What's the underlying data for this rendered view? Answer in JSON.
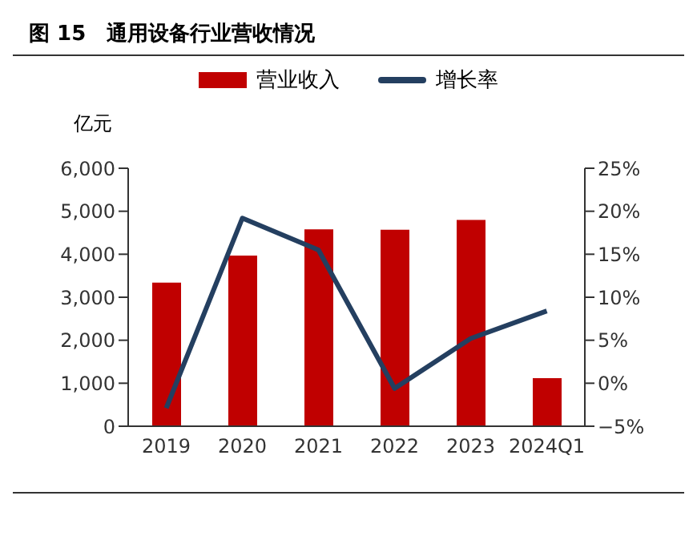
{
  "chart_data": {
    "type": "bar",
    "title": "图 15　通用设备行业营收情况",
    "ylabel": "亿元",
    "categories": [
      "2019",
      "2020",
      "2021",
      "2022",
      "2023",
      "2024Q1"
    ],
    "series": [
      {
        "name": "营业收入",
        "color": "#c00000",
        "values": [
          3340,
          3970,
          4580,
          4570,
          4800,
          1120
        ]
      },
      {
        "name": "增长率",
        "type": "line",
        "axis": "y2",
        "color": "#243f60",
        "values": [
          -2.9,
          19.2,
          15.5,
          -0.6,
          5.2,
          8.4
        ]
      }
    ],
    "ylim": [
      0,
      6000
    ],
    "yticks": [
      0,
      {
        "value": 1000,
        "label": "1,000"
      },
      {
        "value": 2000,
        "label": "2,000"
      },
      {
        "value": 3000,
        "label": "3,000"
      },
      {
        "value": 4000,
        "label": "4,000"
      },
      {
        "value": 5000,
        "label": "5,000"
      },
      {
        "value": 6000,
        "label": "6,000"
      }
    ],
    "y2lim": [
      -5,
      25
    ],
    "y2ticks": [
      {
        "value": -5,
        "label": "−5%"
      },
      {
        "value": 0,
        "label": "0%"
      },
      {
        "value": 5,
        "label": "5%"
      },
      {
        "value": 10,
        "label": "10%"
      },
      {
        "value": 15,
        "label": "15%"
      },
      {
        "value": 20,
        "label": "20%"
      },
      {
        "value": 25,
        "label": "25%"
      }
    ],
    "legend": "top",
    "marker": "none"
  }
}
